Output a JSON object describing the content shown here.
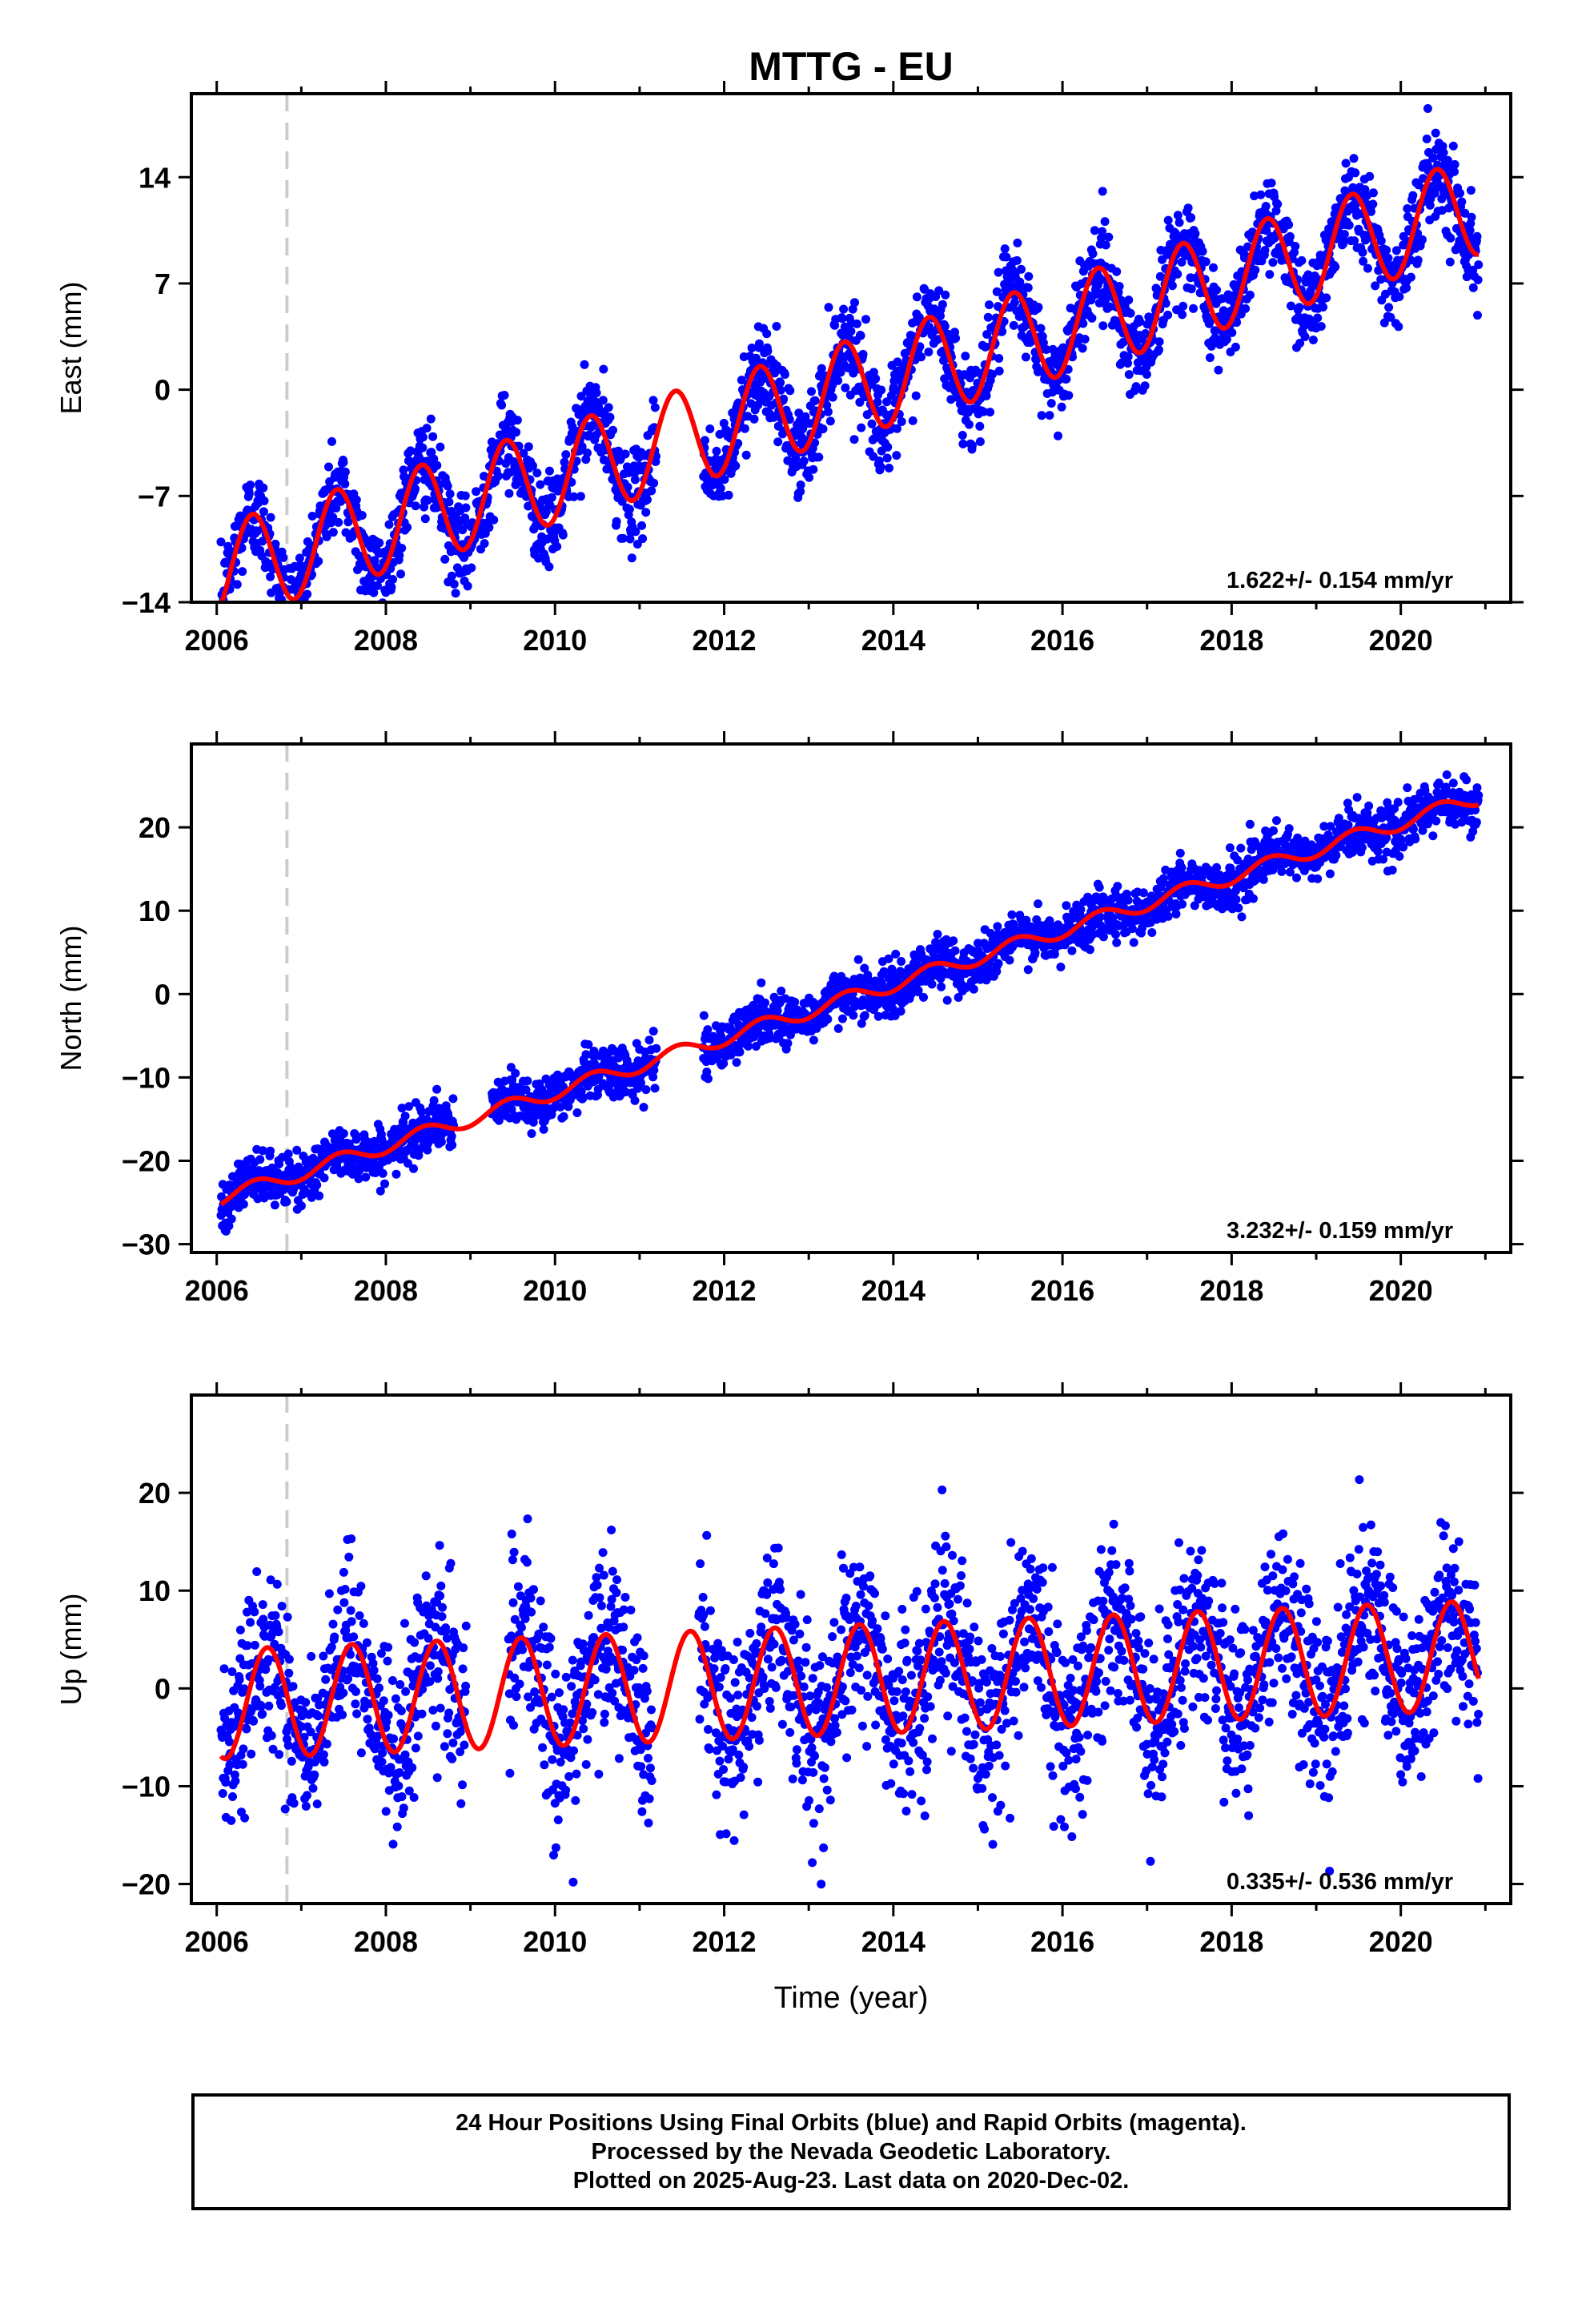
{
  "chart_data": [
    {
      "type": "scatter",
      "title": "MTTG - EU",
      "ylabel": "East (mm)",
      "xlabel": "",
      "xlim": [
        2005.7,
        2021.3
      ],
      "ylim": [
        -14,
        19.5
      ],
      "xticks": [
        2006,
        2008,
        2010,
        2012,
        2014,
        2016,
        2018,
        2020
      ],
      "yticks": [
        -14,
        -7,
        0,
        7,
        14
      ],
      "series": [
        {
          "role": "observations",
          "color": "#0000ff",
          "segments": [
            [
              2006.05,
              2006.8
            ],
            [
              2006.85,
              2011.2
            ],
            [
              2011.75,
              2020.92
            ]
          ],
          "trend_mm_per_yr": 1.622,
          "offset": -12.0,
          "annual_amp": 3.2,
          "annual_peak": 0.42,
          "noise": 1.5
        },
        {
          "role": "model",
          "color": "#ff0000",
          "trend_mm_per_yr": 1.622,
          "offset": -12.0,
          "annual_amp": 3.2,
          "annual_peak": 0.42
        }
      ],
      "annotations": {
        "rate_text": "1.622+/- 0.154 mm/yr",
        "step_line_x": 2006.83,
        "step_line_color": "#cccccc"
      }
    },
    {
      "type": "scatter",
      "title": "",
      "ylabel": "North (mm)",
      "xlabel": "",
      "xlim": [
        2005.7,
        2021.3
      ],
      "ylim": [
        -31,
        30
      ],
      "xticks": [
        2006,
        2008,
        2010,
        2012,
        2014,
        2016,
        2018,
        2020
      ],
      "yticks": [
        -30,
        -20,
        -10,
        0,
        10,
        20
      ],
      "series": [
        {
          "role": "observations",
          "color": "#0000ff",
          "segments": [
            [
              2006.05,
              2008.8
            ],
            [
              2009.25,
              2011.2
            ],
            [
              2011.75,
              2020.92
            ]
          ],
          "trend_mm_per_yr": 3.232,
          "offset": -24.5,
          "annual_amp": 0.9,
          "annual_peak": 0.45,
          "noise": 1.5
        },
        {
          "role": "model",
          "color": "#ff0000",
          "trend_mm_per_yr": 3.232,
          "offset": -24.5,
          "annual_amp": 0.9,
          "annual_peak": 0.45
        }
      ],
      "annotations": {
        "rate_text": "3.232+/- 0.159 mm/yr",
        "step_line_x": 2006.83,
        "step_line_color": "#cccccc"
      }
    },
    {
      "type": "scatter",
      "title": "",
      "ylabel": "Up (mm)",
      "xlabel": "Time (year)",
      "xlim": [
        2005.7,
        2021.3
      ],
      "ylim": [
        -22,
        30
      ],
      "xticks": [
        2006,
        2008,
        2010,
        2012,
        2014,
        2016,
        2018,
        2020
      ],
      "yticks": [
        -20,
        -10,
        0,
        10,
        20
      ],
      "series": [
        {
          "role": "observations",
          "color": "#0000ff",
          "segments": [
            [
              2006.05,
              2008.95
            ],
            [
              2009.45,
              2011.15
            ],
            [
              2011.7,
              2020.92
            ]
          ],
          "trend_mm_per_yr": 0.335,
          "offset": -1.6,
          "annual_amp": 5.6,
          "annual_peak": 0.6,
          "noise": 4.5
        },
        {
          "role": "model",
          "color": "#ff0000",
          "trend_mm_per_yr": 0.335,
          "offset": -1.6,
          "annual_amp": 5.6,
          "annual_peak": 0.6
        }
      ],
      "annotations": {
        "rate_text": "0.335+/- 0.536 mm/yr",
        "step_line_x": 2006.83,
        "step_line_color": "#cccccc"
      }
    }
  ],
  "footer": {
    "line1": "24 Hour Positions Using Final Orbits (blue) and Rapid Orbits (magenta).",
    "line2": "Processed by the Nevada Geodetic Laboratory.",
    "line3": "Plotted on 2025-Aug-23. Last data on 2020-Dec-02."
  }
}
